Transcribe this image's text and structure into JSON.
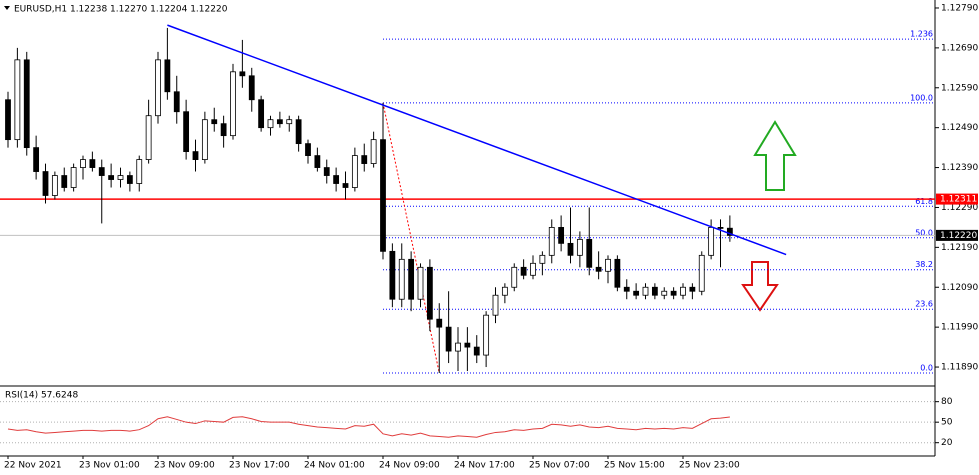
{
  "chart_data": [
    {
      "type": "candlestick",
      "title": "EURUSD,H1  1.12238 1.12270 1.12204 1.12220",
      "categories": [
        "22 Nov 2021",
        null,
        null,
        null,
        null,
        null,
        null,
        null,
        "23 Nov 01:00",
        null,
        null,
        null,
        null,
        null,
        null,
        null,
        "23 Nov 09:00",
        null,
        null,
        null,
        null,
        null,
        null,
        null,
        "23 Nov 17:00",
        null,
        null,
        null,
        null,
        null,
        null,
        null,
        "24 Nov 01:00",
        null,
        null,
        null,
        null,
        null,
        null,
        null,
        "24 Nov 09:00",
        null,
        null,
        null,
        null,
        null,
        null,
        null,
        "24 Nov 17:00",
        null,
        null,
        null,
        null,
        null,
        null,
        null,
        "25 Nov 07:00",
        null,
        null,
        null,
        null,
        null,
        null,
        null,
        "25 Nov 15:00",
        null,
        null,
        null,
        null,
        null,
        null,
        null,
        "25 Nov 23:00",
        null,
        null,
        null,
        null,
        null
      ],
      "open": [
        1.1256,
        1.1246,
        1.1266,
        1.1244,
        1.1238,
        1.1232,
        1.1237,
        1.1234,
        1.1239,
        1.1241,
        1.1239,
        1.1237,
        1.1236,
        1.1237,
        1.1235,
        1.1241,
        1.1252,
        1.1266,
        1.1258,
        1.1253,
        1.1243,
        1.1241,
        1.1251,
        1.125,
        1.1247,
        1.1263,
        1.1262,
        1.1256,
        1.1249,
        1.1251,
        1.125,
        1.1251,
        1.1245,
        1.1242,
        1.1239,
        1.1237,
        1.1235,
        1.1234,
        1.1242,
        1.124,
        1.1246,
        1.1218,
        1.1206,
        1.1216,
        1.1206,
        1.1214,
        1.1201,
        1.1199,
        1.1193,
        1.1195,
        1.1194,
        1.1192,
        1.1202,
        1.1207,
        1.1209,
        1.1214,
        1.1212,
        1.1215,
        1.1217,
        1.1224,
        1.122,
        1.1217,
        1.1221,
        1.1214,
        1.1213,
        1.1216,
        1.1209,
        1.1208,
        1.1207,
        1.1209,
        1.1207,
        1.1208,
        1.1207,
        1.1209,
        1.1208,
        1.1217,
        1.1224,
        1.12238
      ],
      "high": [
        1.1258,
        1.1269,
        1.1268,
        1.1247,
        1.124,
        1.1238,
        1.1239,
        1.124,
        1.1242,
        1.1243,
        1.1241,
        1.124,
        1.1239,
        1.1238,
        1.1242,
        1.1256,
        1.1268,
        1.1274,
        1.1262,
        1.1256,
        1.1246,
        1.1253,
        1.1254,
        1.1252,
        1.1265,
        1.1271,
        1.1264,
        1.1257,
        1.1252,
        1.1253,
        1.1252,
        1.1252,
        1.1246,
        1.1244,
        1.1241,
        1.1239,
        1.1238,
        1.1244,
        1.1245,
        1.1248,
        1.12552,
        1.122,
        1.122,
        1.1218,
        1.1215,
        1.1216,
        1.1205,
        1.1208,
        1.1199,
        1.1199,
        1.1197,
        1.1203,
        1.1209,
        1.121,
        1.1215,
        1.1216,
        1.1217,
        1.1218,
        1.1226,
        1.1227,
        1.1229,
        1.1223,
        1.1229,
        1.1218,
        1.1217,
        1.1217,
        1.1211,
        1.121,
        1.121,
        1.121,
        1.1209,
        1.1209,
        1.121,
        1.121,
        1.1218,
        1.1226,
        1.1226,
        1.1227
      ],
      "low": [
        1.1244,
        1.1244,
        1.1242,
        1.1236,
        1.123,
        1.1231,
        1.1233,
        1.1233,
        1.1236,
        1.1238,
        1.1225,
        1.1234,
        1.1234,
        1.1233,
        1.1233,
        1.124,
        1.125,
        1.1256,
        1.125,
        1.1241,
        1.1238,
        1.124,
        1.1248,
        1.1244,
        1.1246,
        1.1259,
        1.1253,
        1.1248,
        1.1247,
        1.1249,
        1.1248,
        1.1243,
        1.124,
        1.1238,
        1.1235,
        1.1233,
        1.1231,
        1.1233,
        1.1238,
        1.1239,
        1.1216,
        1.1204,
        1.1204,
        1.1203,
        1.1204,
        1.1198,
        1.11875,
        1.119,
        1.1188,
        1.1188,
        1.119,
        1.1189,
        1.12,
        1.1205,
        1.1208,
        1.1211,
        1.1211,
        1.1212,
        1.1215,
        1.1218,
        1.1215,
        1.1214,
        1.1212,
        1.1211,
        1.121,
        1.1208,
        1.1206,
        1.1206,
        1.1206,
        1.1206,
        1.1206,
        1.1206,
        1.1206,
        1.1206,
        1.1207,
        1.1216,
        1.1214,
        1.12204
      ],
      "close": [
        1.1246,
        1.1266,
        1.1244,
        1.1238,
        1.1232,
        1.1237,
        1.1234,
        1.1239,
        1.1241,
        1.1239,
        1.1237,
        1.1236,
        1.1237,
        1.1235,
        1.1241,
        1.1252,
        1.1266,
        1.1258,
        1.1253,
        1.1243,
        1.1241,
        1.1251,
        1.125,
        1.1247,
        1.1263,
        1.1262,
        1.1256,
        1.1249,
        1.1251,
        1.125,
        1.1251,
        1.1245,
        1.1242,
        1.1239,
        1.1237,
        1.1235,
        1.1234,
        1.1242,
        1.124,
        1.1246,
        1.1218,
        1.1206,
        1.1216,
        1.1206,
        1.1214,
        1.1201,
        1.1199,
        1.1193,
        1.1195,
        1.1194,
        1.1192,
        1.1202,
        1.1207,
        1.1209,
        1.1214,
        1.1212,
        1.1215,
        1.1217,
        1.1224,
        1.122,
        1.1217,
        1.1221,
        1.1214,
        1.1213,
        1.1216,
        1.1209,
        1.1208,
        1.1207,
        1.1209,
        1.1207,
        1.1208,
        1.1207,
        1.1209,
        1.1208,
        1.1217,
        1.1224,
        1.12238,
        1.1222
      ],
      "colors": {
        "up": "#ffffff",
        "down": "#000000",
        "wick": "#000000"
      },
      "ylim": [
        1.11845,
        1.1281
      ],
      "yticks": [
        {
          "value": 1.1279,
          "label": "1.12790"
        },
        {
          "value": 1.1269,
          "label": "1.12690"
        },
        {
          "value": 1.1259,
          "label": "1.12590"
        },
        {
          "value": 1.1249,
          "label": "1.12490"
        },
        {
          "value": 1.1239,
          "label": "1.12390"
        },
        {
          "value": 1.1229,
          "label": "1.12290"
        },
        {
          "value": 1.1219,
          "label": "1.12190"
        },
        {
          "value": 1.1209,
          "label": "1.12090"
        },
        {
          "value": 1.1199,
          "label": "1.11990"
        },
        {
          "value": 1.1189,
          "label": "1.11890"
        }
      ],
      "trendline": {
        "x": [
          17,
          83
        ],
        "y": [
          1.12747,
          1.12172
        ],
        "color": "#0000ff"
      },
      "hlines": [
        {
          "value": 1.12311,
          "label": "1.12311",
          "color": "#ff0000",
          "label_bg": "#ff0000"
        },
        {
          "value": 1.1222,
          "label": "1.12220",
          "color": "#c0c0c0",
          "label_bg": "#000000"
        }
      ],
      "fibonacci": {
        "x": [
          40,
          46
        ],
        "color": "#0000ff",
        "diagonal_color": "#ff0000",
        "levels": [
          {
            "value": 1.12712,
            "label": "1.236"
          },
          {
            "value": 1.12552,
            "label": "100.0"
          },
          {
            "value": 1.12293,
            "label": "61.8"
          },
          {
            "value": 1.12214,
            "label": "50.0"
          },
          {
            "value": 1.12134,
            "label": "38.2"
          },
          {
            "value": 1.12035,
            "label": "23.6"
          },
          {
            "value": 1.11875,
            "label": "0.0"
          }
        ]
      }
    },
    {
      "type": "line",
      "title": "RSI(14) 57.6248",
      "values": [
        40,
        38,
        39,
        36,
        34,
        35,
        36,
        37,
        38,
        38,
        37,
        38,
        38,
        37,
        39,
        45,
        55,
        58,
        54,
        50,
        48,
        52,
        51,
        50,
        57,
        58,
        55,
        51,
        50,
        50,
        50,
        47,
        45,
        43,
        42,
        41,
        40,
        45,
        44,
        47,
        33,
        30,
        33,
        31,
        34,
        30,
        29,
        28,
        30,
        29,
        28,
        32,
        35,
        36,
        39,
        38,
        40,
        41,
        47,
        46,
        44,
        46,
        43,
        42,
        44,
        41,
        40,
        39,
        41,
        40,
        41,
        40,
        42,
        41,
        48,
        55,
        56,
        57.6248
      ],
      "color": "#e03c3c",
      "ylim": [
        2,
        100
      ],
      "yticks": [
        80,
        50,
        20
      ]
    }
  ]
}
